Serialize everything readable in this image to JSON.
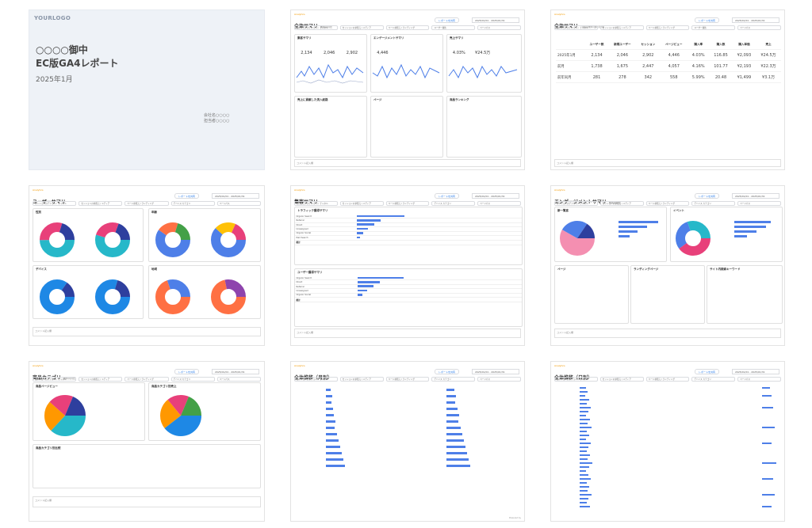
{
  "colors": {
    "blue": "#4e7fe8",
    "pink": "#e8407a",
    "teal": "#26b8c9",
    "navy": "#2e3f9e",
    "orange": "#ff7043",
    "green": "#43a047",
    "yellow": "#ffc107",
    "purple": "#8e44ad"
  },
  "cover": {
    "logo": "YOURLOGO",
    "title1": "○○○○御中",
    "title2": "EC版GA4レポート",
    "date": "2025年1月",
    "company": "会社名○○○○",
    "author": "担当者○○○○"
  },
  "common": {
    "ga_label": "Analytics",
    "share_button": "レポートを共有",
    "date_range": "2025/01/01 - 2025/01/31",
    "comment": "コメント記入欄",
    "footer_right": "Powered by",
    "filters": [
      "セッションのデフォルト チャネル",
      "セッションの参照元 / メディア",
      "ページ参照元 / ランディング",
      "ユーザー属性",
      "デバイス カテゴリ",
      "ページパス"
    ]
  },
  "pages": {
    "summary": {
      "title": "全体サマリ",
      "subtitle": "前年同月比",
      "cards": [
        "集客サマリ",
        "エンゲージメントサマリ",
        "売上サマリ",
        "売上に貢献した流入経路",
        "ページ",
        "商品ランキング"
      ]
    },
    "summary_table": {
      "title": "全体サマリ",
      "subtitle": "（先月/前年/過年同月）",
      "headers": [
        "ユーザー数",
        "新規ユーザー",
        "セッション",
        "ページビュー",
        "購入率",
        "購入数",
        "購入単価",
        "売上"
      ],
      "rows": [
        {
          "label": "2025年1月",
          "values": [
            "2,134",
            "2,046",
            "2,902",
            "4,446",
            "4.03%",
            "116.85",
            "¥2,093",
            "¥24.5万"
          ]
        },
        {
          "label": "前月",
          "values": [
            "1,738",
            "1,675",
            "2,447",
            "4,057",
            "4.16%",
            "101.77",
            "¥2,193",
            "¥22.3万"
          ]
        },
        {
          "label": "前年同月",
          "values": [
            "281",
            "278",
            "342",
            "558",
            "5.99%",
            "20.48",
            "¥1,499",
            "¥3.1万"
          ]
        }
      ]
    },
    "user": {
      "title": "ユーザーサマリ",
      "cards": [
        "性別",
        "年齢",
        "デバイス",
        "地域"
      ]
    },
    "acq": {
      "title": "集客サマリ",
      "cards": [
        "トラフィック獲得サマリ",
        "ユーザー獲得サマリ"
      ],
      "rows": [
        "Organic Search",
        "Referral",
        "Direct",
        "Unassigned",
        "Organic Social",
        "Paid Search"
      ],
      "total": "総計"
    },
    "eng": {
      "title": "エンゲージメントサマリ",
      "subtitle": "前年同月比",
      "cards": [
        "新一覧客",
        "イベント",
        "ページ",
        "ランディングページ",
        "サイト内検索キーワード"
      ]
    },
    "product": {
      "title": "商品カテゴリ",
      "subtitle": "前年同月比",
      "cards": [
        "商品ページビュー",
        "商品カテゴリ別売上",
        "商品カテゴリ別比較"
      ]
    },
    "monthly": {
      "title": "全体推移（月別）"
    },
    "daily": {
      "title": "全体推移（日別）"
    }
  }
}
